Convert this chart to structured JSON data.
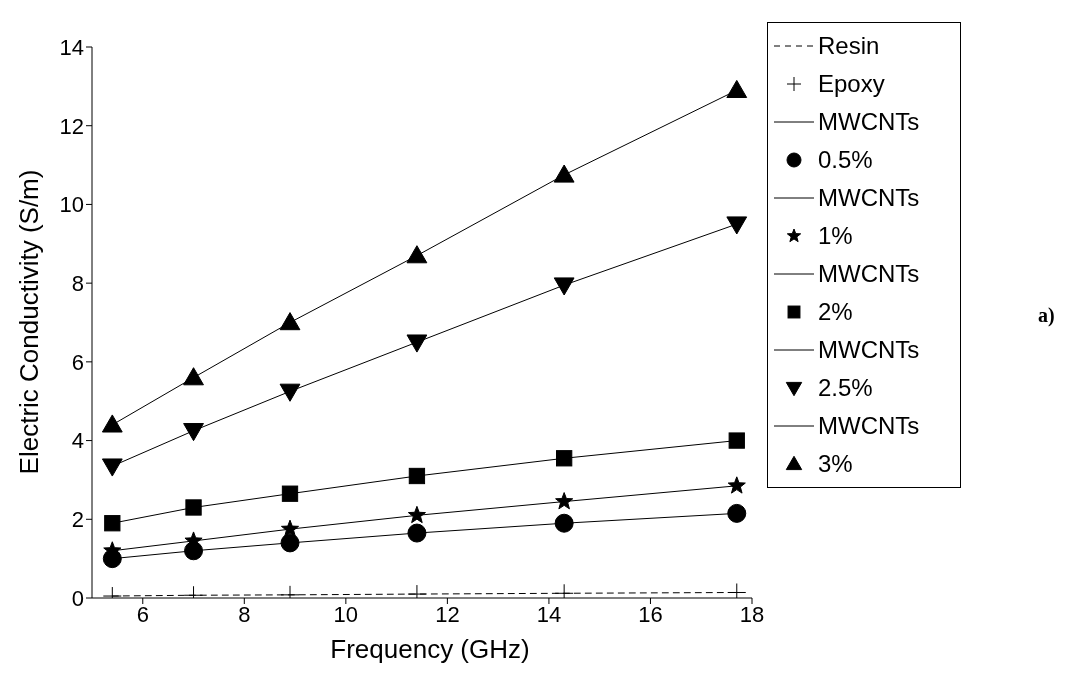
{
  "chart_data": {
    "type": "line",
    "xlabel": "Frequency (GHz)",
    "ylabel": "Electric Conductivity (S/m)",
    "annotations": [
      "a)"
    ],
    "x": [
      5.4,
      7,
      8.9,
      11.4,
      14.3,
      17.7
    ],
    "xlim": [
      5,
      18
    ],
    "xticks": [
      6,
      8,
      10,
      12,
      14,
      16,
      18
    ],
    "ylim": [
      0,
      14
    ],
    "yticks": [
      0,
      2,
      4,
      6,
      8,
      10,
      12,
      14
    ],
    "legend": "right",
    "series": [
      {
        "name": "Resin Epoxy",
        "color": "#000000",
        "marker": "cross",
        "line_style": "dashed",
        "values": [
          0.05,
          0.07,
          0.08,
          0.1,
          0.12,
          0.14
        ]
      },
      {
        "name": "MWCNTs 0.5%",
        "color": "#000000",
        "marker": "circle",
        "line_style": "solid",
        "values": [
          1.0,
          1.2,
          1.4,
          1.65,
          1.9,
          2.15
        ]
      },
      {
        "name": "MWCNTs 1%",
        "color": "#000000",
        "marker": "star",
        "line_style": "solid",
        "values": [
          1.2,
          1.45,
          1.75,
          2.1,
          2.45,
          2.85
        ]
      },
      {
        "name": "MWCNTs 2%",
        "color": "#000000",
        "marker": "square",
        "line_style": "solid",
        "values": [
          1.9,
          2.3,
          2.65,
          3.1,
          3.55,
          4.0
        ]
      },
      {
        "name": "MWCNTs 2.5%",
        "color": "#000000",
        "marker": "triangle_down",
        "line_style": "solid",
        "values": [
          3.35,
          4.25,
          5.25,
          6.5,
          7.95,
          9.5
        ]
      },
      {
        "name": "MWCNTs 3%",
        "color": "#000000",
        "marker": "triangle",
        "line_style": "solid",
        "values": [
          4.4,
          5.6,
          7.0,
          8.7,
          10.75,
          12.9
        ]
      }
    ]
  }
}
